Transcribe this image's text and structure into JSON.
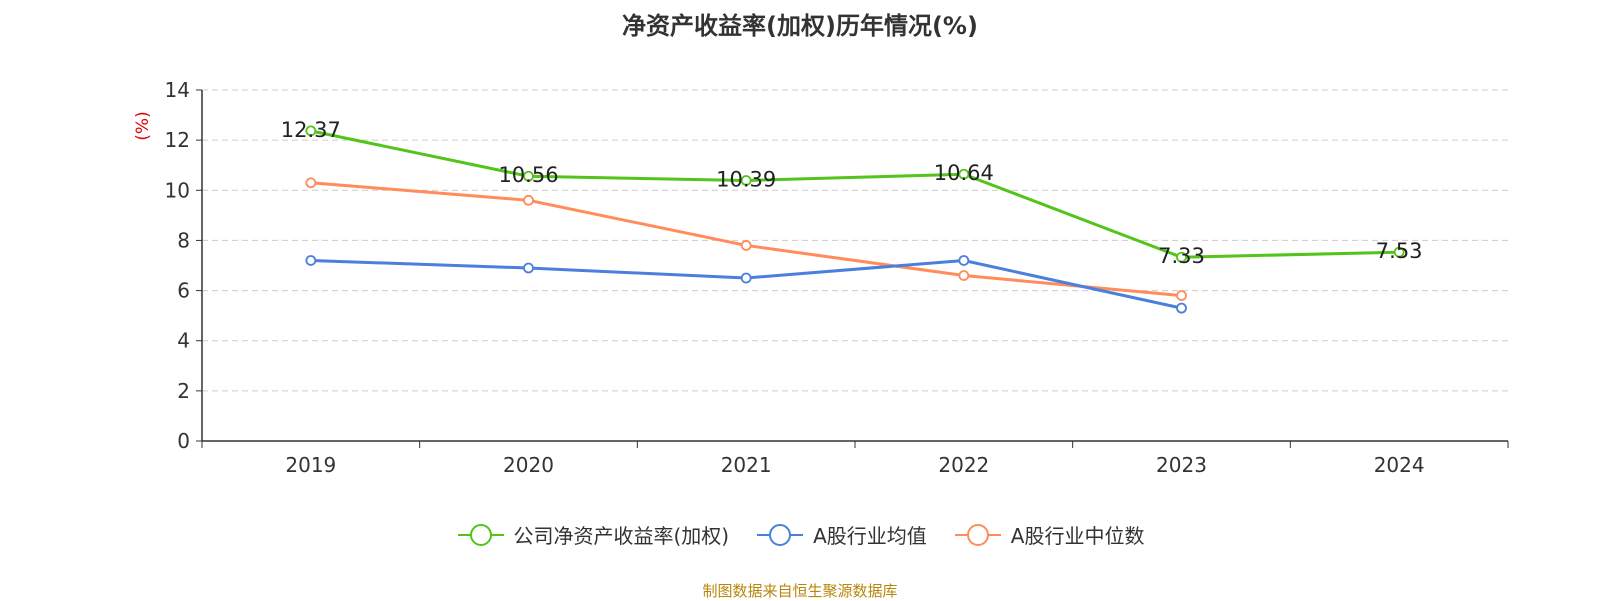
{
  "chart_data": {
    "type": "line",
    "title": "净资产收益率(加权)历年情况(%)",
    "ylabel": "(%)",
    "xlabel": "",
    "ylim": [
      0,
      14
    ],
    "yticks": [
      0,
      2,
      4,
      6,
      8,
      10,
      12,
      14
    ],
    "grid": true,
    "legend_position": "bottom",
    "categories": [
      "2019",
      "2020",
      "2021",
      "2022",
      "2023",
      "2024"
    ],
    "series": [
      {
        "name": "公司净资产收益率(加权)",
        "color": "#52c41a",
        "show_labels": true,
        "values": [
          12.37,
          10.56,
          10.39,
          10.64,
          7.33,
          7.53
        ]
      },
      {
        "name": "A股行业均值",
        "color": "#4a7fdc",
        "show_labels": false,
        "values": [
          7.2,
          6.9,
          6.5,
          7.2,
          5.3,
          null
        ]
      },
      {
        "name": "A股行业中位数",
        "color": "#ff8c5a",
        "show_labels": false,
        "values": [
          10.3,
          9.6,
          7.8,
          6.6,
          5.8,
          null
        ]
      }
    ]
  },
  "source_note": "制图数据来自恒生聚源数据库"
}
